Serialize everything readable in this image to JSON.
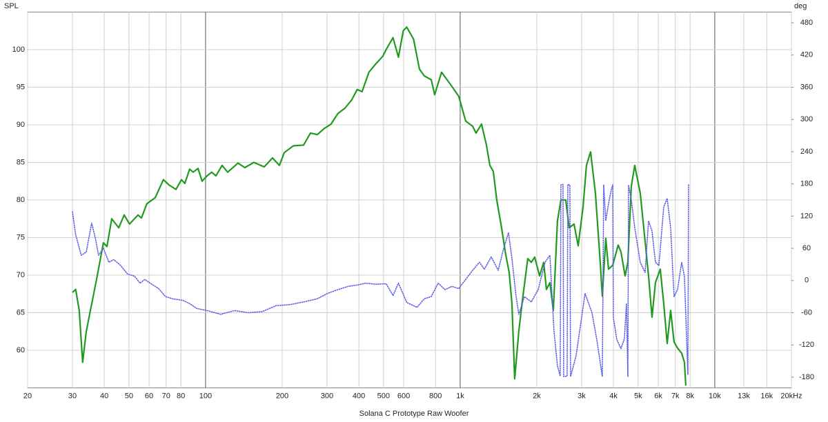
{
  "chart_data": {
    "type": "line",
    "xlabel": "Solana C Prototype Raw Woofer",
    "ylabel": "SPL",
    "y2label": "deg",
    "xscale": "log",
    "grid": true,
    "xlim": [
      20,
      20000
    ],
    "ylim": [
      55,
      105
    ],
    "y2lim": [
      -200,
      500
    ],
    "xticks": [
      20,
      30,
      40,
      50,
      60,
      70,
      80,
      100,
      200,
      300,
      400,
      500,
      600,
      800,
      {
        "value": 1000,
        "label": "1k"
      },
      {
        "value": 2000,
        "label": "2k"
      },
      {
        "value": 3000,
        "label": "3k"
      },
      {
        "value": 4000,
        "label": "4k"
      },
      {
        "value": 5000,
        "label": "5k"
      },
      {
        "value": 6000,
        "label": "6k"
      },
      {
        "value": 7000,
        "label": "7k"
      },
      {
        "value": 8000,
        "label": "8k"
      },
      {
        "value": 10000,
        "label": "10k"
      },
      {
        "value": 13000,
        "label": "13k"
      },
      {
        "value": 16000,
        "label": "16k"
      },
      {
        "value": 20000,
        "label": "20kHz"
      }
    ],
    "yticks": [
      60,
      65,
      70,
      75,
      80,
      85,
      90,
      95,
      100
    ],
    "y2ticks": [
      -180,
      -120,
      -60,
      0,
      60,
      120,
      180,
      240,
      300,
      360,
      420,
      480
    ],
    "series": [
      {
        "color": "#1f9a1f",
        "line_style": "solid",
        "x": [
          30.0,
          30.9,
          31.9,
          32.9,
          34.0,
          35.1,
          37.3,
          39.7,
          41.0,
          42.8,
          45.6,
          47.9,
          50.3,
          54.3,
          56.0,
          58.8,
          63.4,
          68.3,
          71.8,
          76.5,
          80.4,
          82.9,
          86.6,
          89.4,
          93.4,
          96.9,
          101.3,
          105.8,
          109.8,
          116.1,
          122.1,
          134.1,
          142.7,
          154.7,
          170,
          183.2,
          195,
          203.7,
          221.1,
          242.6,
          258.2,
          274.7,
          292.3,
          311.1,
          331,
          352.3,
          374.8,
          394.1,
          411.7,
          438.1,
          466.2,
          496.1,
          511.8,
          544.6,
          572.3,
          597.6,
          616.5,
          656,
          692,
          723,
          770,
          794,
          845,
          888,
          928,
          987,
          1051,
          1119,
          1154,
          1213,
          1268,
          1308,
          1349,
          1392,
          1454,
          1510,
          1557,
          1597,
          1637,
          1700,
          1764,
          1843,
          1902,
          1962,
          2050,
          2128,
          2182,
          2251,
          2322,
          2410,
          2487,
          2598,
          2680,
          2800,
          2907,
          3037,
          3133,
          3252,
          3398,
          3549,
          3616,
          3731,
          3825,
          3971,
          4175,
          4280,
          4443,
          4556,
          4700,
          4849,
          5097,
          5325,
          5493,
          5668,
          5847,
          6108,
          6302,
          6502,
          6708,
          6920,
          7140,
          7412,
          7599,
          7695
        ],
        "values": [
          67.7,
          68.1,
          65.3,
          58.4,
          62.5,
          64.9,
          69.4,
          74.3,
          73.8,
          77.5,
          76.3,
          78.0,
          76.8,
          78.0,
          77.6,
          79.5,
          80.3,
          82.7,
          82.0,
          81.4,
          82.7,
          82.2,
          84.1,
          83.7,
          84.2,
          82.5,
          83.2,
          83.7,
          83.2,
          84.6,
          83.7,
          84.9,
          84.3,
          85.0,
          84.4,
          85.6,
          84.6,
          86.3,
          87.2,
          87.3,
          88.9,
          88.7,
          89.5,
          90.1,
          91.5,
          92.2,
          93.3,
          94.7,
          94.4,
          97.0,
          98.1,
          99.1,
          100.0,
          101.6,
          99.0,
          102.5,
          103.0,
          101.4,
          97.4,
          96.5,
          96.0,
          94.0,
          97.0,
          96.0,
          95.1,
          93.8,
          90.5,
          89.8,
          88.9,
          90.1,
          87.3,
          84.6,
          83.8,
          80.0,
          76.3,
          72.7,
          70.4,
          66.2,
          56.2,
          62.6,
          67.2,
          72.2,
          71.7,
          72.4,
          69.9,
          71.7,
          68.1,
          69.0,
          65.3,
          77.2,
          80.0,
          80.0,
          76.3,
          76.8,
          73.9,
          79.0,
          84.6,
          86.4,
          80.9,
          71.7,
          67.2,
          74.9,
          70.8,
          71.3,
          74.0,
          73.1,
          69.9,
          71.7,
          81.8,
          84.6,
          80.9,
          74.5,
          69.9,
          64.4,
          69.0,
          70.8,
          66.2,
          60.9,
          65.3,
          61.1,
          60.3,
          59.6,
          58.4,
          55.3
        ]
      },
      {
        "color": "#5c5ce8",
        "line_style": "dotted",
        "axis": "y2",
        "x": [
          30.0,
          30.9,
          32.5,
          34.0,
          35.7,
          36.9,
          38.0,
          39.7,
          41.7,
          43.6,
          46.4,
          49.4,
          52.6,
          55.3,
          57.7,
          61.5,
          65.4,
          69.6,
          74.1,
          81.4,
          86.6,
          92.2,
          101.3,
          114.7,
          130,
          147.3,
          166.8,
          188.9,
          214,
          242.6,
          274.7,
          301.6,
          331,
          363.4,
          399,
          425,
          466,
          512,
          545,
          572,
          617,
          677,
          723,
          770,
          819,
          872,
          928,
          987,
          1051,
          1119,
          1191,
          1244,
          1324,
          1410,
          1482,
          1548,
          1597,
          1658,
          1700,
          1787,
          1902,
          2024,
          2155,
          2251,
          2337,
          2410,
          2471,
          2487,
          2534,
          2550,
          2631,
          2647,
          2697,
          2714,
          2853,
          3094,
          3293,
          3440,
          3616,
          3662,
          3731,
          3825,
          3922,
          3971,
          3996,
          4123,
          4280,
          4416,
          4499,
          4556,
          4584,
          4700,
          4849,
          5097,
          5325,
          5493,
          5668,
          5847,
          6032,
          6302,
          6502,
          6708,
          6920,
          7140,
          7412,
          7599,
          7840,
          7889
        ],
        "values": [
          128,
          85,
          47,
          53,
          107,
          79,
          47,
          60,
          34,
          39,
          28,
          12,
          8,
          -5,
          2,
          -7,
          -15,
          -30,
          -34,
          -37,
          -43,
          -52,
          -56,
          -63,
          -56,
          -60,
          -58,
          -47,
          -45,
          -40,
          -34,
          -24,
          -17,
          -11,
          -8,
          -5,
          -7,
          -6,
          -28,
          -5,
          -41,
          -50,
          -34,
          -30,
          -5,
          -17,
          -11,
          -15,
          2,
          19,
          34,
          21,
          44,
          19,
          60,
          89,
          41,
          -30,
          -63,
          -30,
          -40,
          -17,
          34,
          47,
          -95,
          -159,
          -178,
          178,
          179,
          -179,
          -178,
          179,
          178,
          -179,
          -140,
          -24,
          -60,
          -110,
          -179,
          178,
          111,
          143,
          169,
          178,
          -69,
          -110,
          -127,
          -108,
          -43,
          -179,
          178,
          150,
          98,
          34,
          15,
          111,
          92,
          34,
          28,
          137,
          153,
          98,
          -30,
          -17,
          34,
          8,
          -175,
          178
        ]
      }
    ]
  }
}
